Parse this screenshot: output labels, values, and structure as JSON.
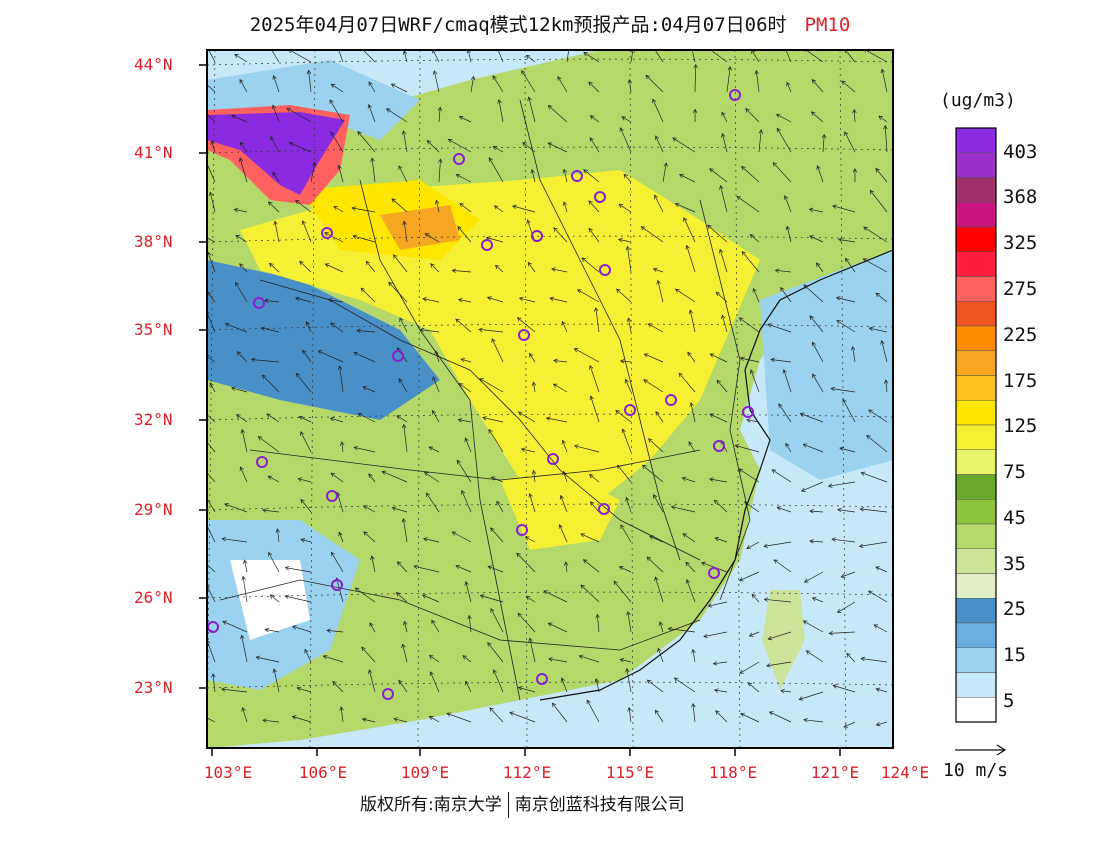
{
  "title": {
    "main": "2025年04月07日WRF/cmaq模式12km预报产品:04月07日06时",
    "pollutant": "PM10"
  },
  "unit": "(ug/m3)",
  "colorbar": {
    "labels": [
      "403",
      "368",
      "325",
      "275",
      "225",
      "175",
      "125",
      "75",
      "45",
      "35",
      "25",
      "15",
      "5"
    ],
    "colors": [
      "#8a2be2",
      "#9b30c8",
      "#a0306a",
      "#cc1480",
      "#ff0000",
      "#ff1e3c",
      "#ff6060",
      "#ee5522",
      "#ff8c00",
      "#f5a623",
      "#ffc21a",
      "#ffe600",
      "#f5f033",
      "#e8f56a",
      "#6aaa2a",
      "#8cc43c",
      "#b4d86a",
      "#cce39a",
      "#e1edc4",
      "#4a90c8",
      "#6aaee0",
      "#9ad2f0",
      "#c6e8f8",
      "#ffffff"
    ]
  },
  "wind_reference": "10 m/s",
  "latitude_labels": [
    "44°N",
    "41°N",
    "38°N",
    "35°N",
    "32°N",
    "29°N",
    "26°N",
    "23°N"
  ],
  "longitude_labels": [
    "103°E",
    "106°E",
    "109°E",
    "112°E",
    "115°E",
    "118°E",
    "121°E",
    "124°E"
  ],
  "footer": {
    "left": "版权所有:南京大学",
    "right": "南京创蓝科技有限公司"
  }
}
